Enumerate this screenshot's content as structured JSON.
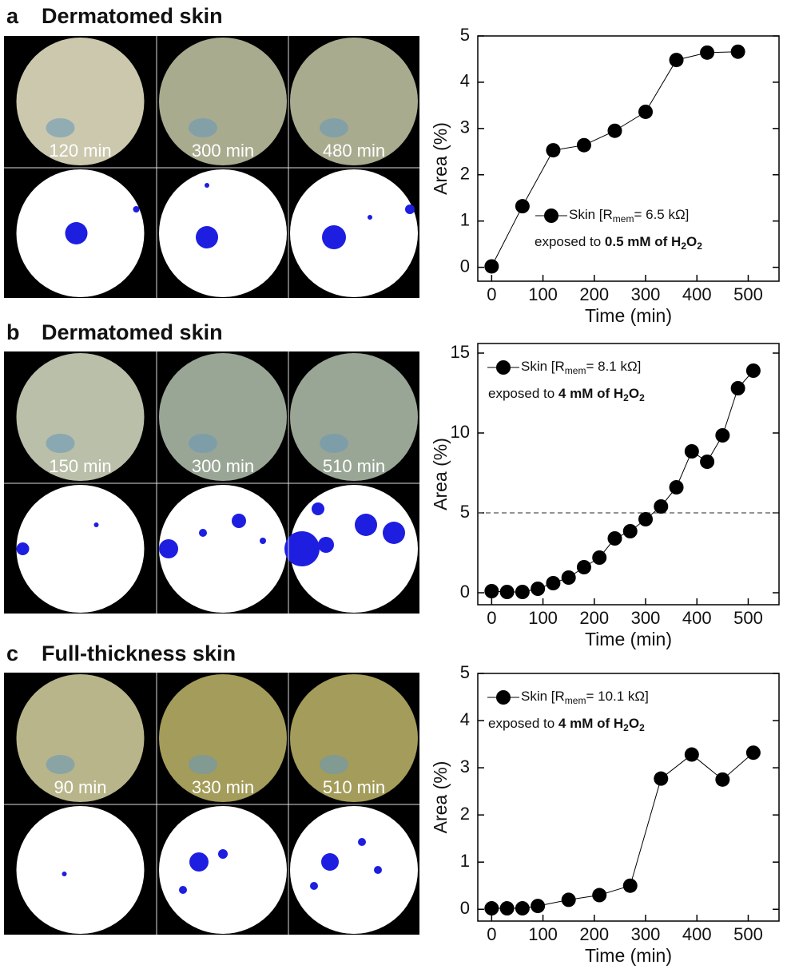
{
  "chart_data": [
    {
      "type": "line",
      "panel_label": "a",
      "title": "Dermatomed skin",
      "image_labels": [
        "120 min",
        "300 min",
        "480 min"
      ],
      "x": [
        0,
        60,
        120,
        180,
        240,
        300,
        360,
        420,
        480
      ],
      "series": [
        {
          "color": "#000000",
          "values": [
            0.02,
            1.32,
            2.53,
            2.64,
            2.95,
            3.36,
            4.48,
            4.64,
            4.66
          ]
        }
      ],
      "legend": [
        "Skin [R",
        "mem",
        "= 6.5 kΩ]"
      ],
      "annotation": [
        "exposed to ",
        "0.5 mM of H",
        "2",
        "O",
        "2"
      ],
      "xlim": [
        -27,
        560
      ],
      "ylim": [
        -0.3,
        5
      ],
      "xticks": [
        0,
        100,
        200,
        300,
        400,
        500
      ],
      "yticks": [
        0,
        1,
        2,
        3,
        4,
        5
      ],
      "xlabel": "Time (min)",
      "ylabel": "Area (%)"
    },
    {
      "type": "line",
      "panel_label": "b",
      "title": "Dermatomed skin",
      "image_labels": [
        "150 min",
        "300 min",
        "510 min"
      ],
      "x": [
        0,
        30,
        60,
        90,
        120,
        150,
        180,
        210,
        240,
        270,
        300,
        330,
        360,
        390,
        420,
        450,
        480,
        510
      ],
      "series": [
        {
          "color": "#000000",
          "values": [
            0.1,
            0.05,
            0.05,
            0.25,
            0.6,
            0.95,
            1.6,
            2.2,
            3.4,
            3.85,
            4.6,
            5.4,
            6.6,
            8.85,
            8.2,
            9.85,
            12.8,
            13.9
          ]
        }
      ],
      "legend": [
        "Skin [R",
        "mem",
        "= 8.1 kΩ]"
      ],
      "annotation": [
        "exposed to ",
        "4 mM of H",
        "2",
        "O",
        "2"
      ],
      "hline": 5,
      "xlim": [
        -27,
        560
      ],
      "ylim": [
        -0.75,
        15.6
      ],
      "xticks": [
        0,
        100,
        200,
        300,
        400,
        500
      ],
      "yticks": [
        0,
        5,
        10,
        15
      ],
      "xlabel": "Time (min)",
      "ylabel": "Area (%)"
    },
    {
      "type": "line",
      "panel_label": "c",
      "title": "Full-thickness skin",
      "image_labels": [
        "90 min",
        "330 min",
        "510 min"
      ],
      "x": [
        0,
        30,
        60,
        90,
        150,
        210,
        270,
        330,
        390,
        450,
        510
      ],
      "series": [
        {
          "color": "#000000",
          "values": [
            0.02,
            0.02,
            0.02,
            0.07,
            0.2,
            0.3,
            0.5,
            2.77,
            3.28,
            2.75,
            3.32
          ]
        }
      ],
      "legend": [
        "Skin [R",
        "mem",
        "= 10.1 kΩ]"
      ],
      "annotation": [
        "exposed to ",
        "4 mM of H",
        "2",
        "O",
        "2"
      ],
      "xlim": [
        -27,
        560
      ],
      "ylim": [
        -0.25,
        5
      ],
      "xticks": [
        0,
        100,
        200,
        300,
        400,
        500
      ],
      "yticks": [
        0,
        1,
        2,
        3,
        4,
        5
      ],
      "xlabel": "Time (min)",
      "ylabel": "Area (%)"
    }
  ]
}
